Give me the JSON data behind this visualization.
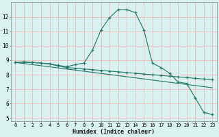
{
  "title": "",
  "xlabel": "Humidex (Indice chaleur)",
  "background_color": "#d8f2f0",
  "line_color": "#2a7a6a",
  "grid_color": "#f0b8b8",
  "xlim": [
    -0.5,
    23.5
  ],
  "ylim": [
    4.8,
    13.0
  ],
  "xticks": [
    0,
    1,
    2,
    3,
    4,
    5,
    6,
    7,
    8,
    9,
    10,
    11,
    12,
    13,
    14,
    15,
    16,
    17,
    18,
    19,
    20,
    21,
    22,
    23
  ],
  "yticks": [
    5,
    6,
    7,
    8,
    9,
    10,
    11,
    12
  ],
  "line1_x": [
    0,
    1,
    2,
    3,
    4,
    5,
    6,
    7,
    8,
    9,
    10,
    11,
    12,
    13,
    14,
    15,
    16,
    17,
    18,
    19,
    20,
    21,
    22,
    23
  ],
  "line1_y": [
    8.85,
    8.9,
    8.85,
    8.8,
    8.75,
    8.65,
    8.55,
    8.7,
    8.8,
    9.7,
    11.1,
    11.95,
    12.5,
    12.5,
    12.3,
    11.1,
    8.8,
    8.5,
    8.1,
    7.5,
    7.4,
    6.4,
    5.4,
    5.25
  ],
  "line2_x": [
    0,
    1,
    2,
    3,
    4,
    5,
    6,
    7,
    8,
    9,
    10,
    11,
    12,
    13,
    14,
    15,
    16,
    17,
    18,
    19,
    20,
    21,
    22,
    23
  ],
  "line2_y": [
    8.85,
    8.85,
    8.85,
    8.8,
    8.75,
    8.6,
    8.5,
    8.45,
    8.4,
    8.35,
    8.3,
    8.25,
    8.2,
    8.15,
    8.1,
    8.05,
    8.0,
    7.95,
    7.9,
    7.85,
    7.8,
    7.75,
    7.7,
    7.65
  ],
  "line3_x": [
    0,
    23
  ],
  "line3_y": [
    8.85,
    7.1
  ]
}
